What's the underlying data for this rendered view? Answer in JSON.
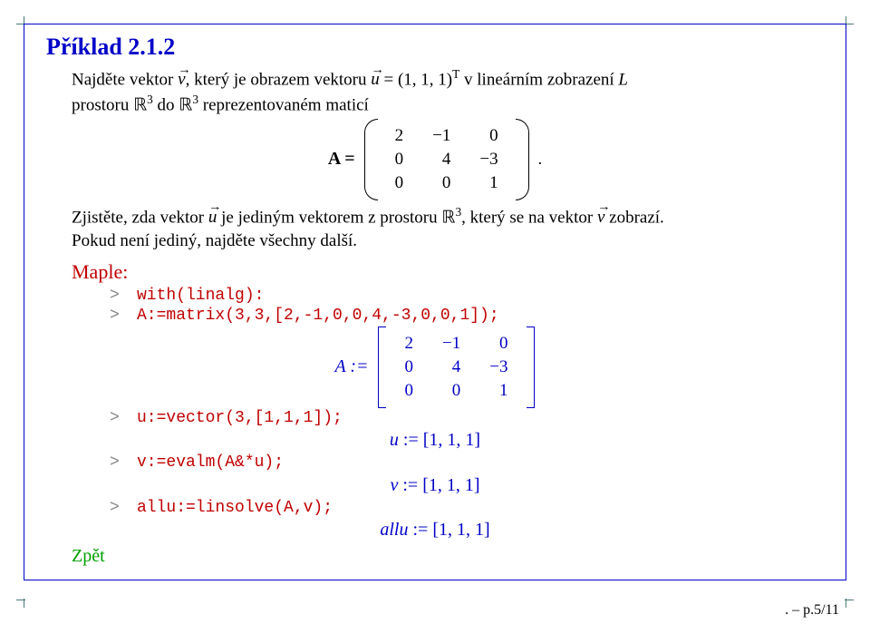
{
  "title": "Příklad 2.1.2",
  "problem": {
    "line1_html": "Najděte vektor <span class='vec mathit'>v<span class='arrow'>→</span></span>, který je obrazem vektoru <span class='vec mathit'>u<span class='arrow'>→</span></span> = (1, 1, 1)<span class='sup rmsup'>T</span> v lineárním zobrazení <span class='mathit'>L</span>",
    "line2_html": "prostoru <span class='bb'>ℝ</span><span class='sup'>3</span> do <span class='bb'>ℝ</span><span class='sup'>3</span> reprezentovaném maticí",
    "matrix_label": "A =",
    "matrix_rows": [
      [
        "2",
        "−1",
        "0"
      ],
      [
        "0",
        "4",
        "−3"
      ],
      [
        "0",
        "0",
        "1"
      ]
    ],
    "matrix_trailing": ".",
    "line3_html": "Zjistěte, zda vektor <span class='vec mathit'>u<span class='arrow'>→</span></span> je jediným vektorem z prostoru <span class='bb'>ℝ</span><span class='sup'>3</span>, který se na vektor <span class='vec mathit'>v<span class='arrow'>→</span></span> zobrazí.",
    "line4": "Pokud není jediný, najděte všechny další."
  },
  "maple": {
    "label": "Maple:",
    "lines": [
      "with(linalg):",
      "A:=matrix(3,3,[2,-1,0,0,4,-3,0,0,1]);"
    ],
    "result_A": {
      "label": "A :=",
      "rows": [
        [
          "2",
          "−1",
          "0"
        ],
        [
          "0",
          "4",
          "−3"
        ],
        [
          "0",
          "0",
          "1"
        ]
      ]
    },
    "lines2": [
      "u:=vector(3,[1,1,1]);"
    ],
    "result_u": "u := [1, 1, 1]",
    "lines3": [
      "v:=evalm(A&*u);"
    ],
    "result_v": "v := [1, 1, 1]",
    "lines4": [
      "allu:=linsolve(A,v);"
    ],
    "result_allu": "allu := [1, 1, 1]"
  },
  "back": "Zpět",
  "pageref": ". – p.5/11",
  "colors": {
    "frame": "#0000c8",
    "title": "#0000c8",
    "maple_red": "#c00000",
    "result_blue": "#0000c8",
    "back_green": "#00a000",
    "crop": "#4a7a7a"
  }
}
